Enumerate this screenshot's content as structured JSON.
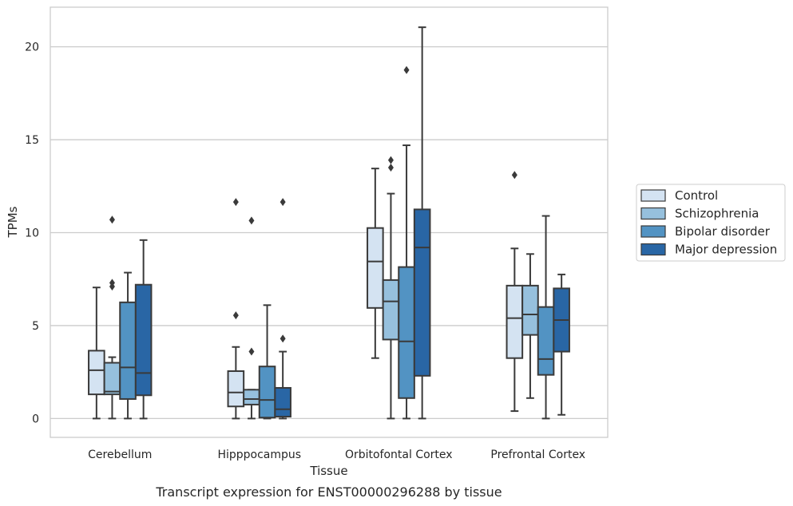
{
  "chart_data": {
    "type": "box",
    "title": "",
    "caption": "Transcript expression for ENST00000296288 by tissue",
    "xlabel": "Tissue",
    "ylabel": "TPMs",
    "ylim": [
      -1,
      22
    ],
    "yticks": [
      0,
      5,
      10,
      15,
      20
    ],
    "grid": "horizontal",
    "legend_position": "right",
    "categories": [
      "Cerebellum",
      "Hipppocampus",
      "Orbitofontal Cortex",
      "Prefrontal Cortex"
    ],
    "series": [
      {
        "name": "Control",
        "color": "#d4e3f2",
        "boxes": [
          {
            "whislo": 0.0,
            "q1": 1.3,
            "med": 2.6,
            "q3": 3.65,
            "whishi": 7.05,
            "fliers": []
          },
          {
            "whislo": 0.0,
            "q1": 0.65,
            "med": 1.4,
            "q3": 2.55,
            "whishi": 3.85,
            "fliers": [
              5.55,
              11.65
            ]
          },
          {
            "whislo": 3.25,
            "q1": 5.95,
            "med": 8.45,
            "q3": 10.25,
            "whishi": 13.45,
            "fliers": []
          },
          {
            "whislo": 0.4,
            "q1": 3.25,
            "med": 5.4,
            "q3": 7.15,
            "whishi": 9.15,
            "fliers": [
              13.1
            ]
          }
        ]
      },
      {
        "name": "Schizophrenia",
        "color": "#96c0dd",
        "boxes": [
          {
            "whislo": 0.0,
            "q1": 1.3,
            "med": 1.45,
            "q3": 3.0,
            "whishi": 3.3,
            "fliers": [
              7.1,
              7.3,
              10.7
            ]
          },
          {
            "whislo": 0.0,
            "q1": 0.75,
            "med": 1.05,
            "q3": 1.55,
            "whishi": 1.55,
            "fliers": [
              3.6,
              10.65
            ]
          },
          {
            "whislo": 0.0,
            "q1": 4.25,
            "med": 6.3,
            "q3": 7.45,
            "whishi": 12.1,
            "fliers": [
              13.5,
              13.9
            ]
          },
          {
            "whislo": 1.1,
            "q1": 4.5,
            "med": 5.6,
            "q3": 7.15,
            "whishi": 8.85,
            "fliers": []
          }
        ]
      },
      {
        "name": "Bipolar disorder",
        "color": "#5293c3",
        "boxes": [
          {
            "whislo": 0.0,
            "q1": 1.05,
            "med": 2.75,
            "q3": 6.25,
            "whishi": 7.85,
            "fliers": []
          },
          {
            "whislo": 0.0,
            "q1": 0.05,
            "med": 1.0,
            "q3": 2.8,
            "whishi": 6.1,
            "fliers": []
          },
          {
            "whislo": 0.0,
            "q1": 1.1,
            "med": 4.15,
            "q3": 8.15,
            "whishi": 14.7,
            "fliers": [
              18.75
            ]
          },
          {
            "whislo": 0.0,
            "q1": 2.35,
            "med": 3.2,
            "q3": 6.0,
            "whishi": 10.9,
            "fliers": []
          }
        ]
      },
      {
        "name": "Major depression",
        "color": "#2966a5",
        "boxes": [
          {
            "whislo": 0.0,
            "q1": 1.25,
            "med": 2.45,
            "q3": 7.2,
            "whishi": 9.6,
            "fliers": []
          },
          {
            "whislo": 0.0,
            "q1": 0.1,
            "med": 0.5,
            "q3": 1.65,
            "whishi": 3.6,
            "fliers": [
              4.3,
              11.65
            ]
          },
          {
            "whislo": 0.0,
            "q1": 2.3,
            "med": 9.2,
            "q3": 11.25,
            "whishi": 21.05,
            "fliers": []
          },
          {
            "whislo": 0.2,
            "q1": 3.6,
            "med": 5.3,
            "q3": 7.0,
            "whishi": 7.75,
            "fliers": []
          }
        ]
      }
    ]
  }
}
